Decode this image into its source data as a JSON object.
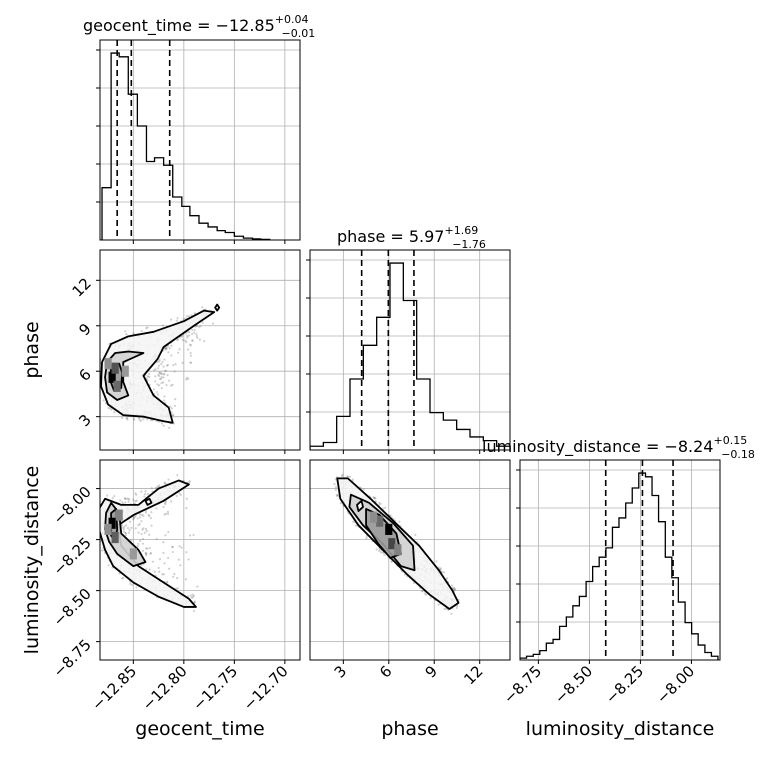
{
  "chart_data": {
    "type": "corner",
    "parameters": [
      {
        "name": "geocent_time",
        "range": [
          -12.883,
          -12.685
        ],
        "ticks": [
          -12.85,
          -12.8,
          -12.75,
          -12.7
        ],
        "tick_labels": [
          "−12.85",
          "−12.80",
          "−12.75",
          "−12.70"
        ]
      },
      {
        "name": "phase",
        "range": [
          0.8,
          14.0
        ],
        "ticks": [
          3,
          6,
          9,
          12
        ],
        "tick_labels": [
          "3",
          "6",
          "9",
          "12"
        ]
      },
      {
        "name": "luminosity_distance",
        "range": [
          -8.84,
          -7.86
        ],
        "ticks": [
          -8.75,
          -8.5,
          -8.25,
          -8.0
        ],
        "tick_labels": [
          "−8.75",
          "−8.50",
          "−8.25",
          "−8.00"
        ]
      }
    ],
    "titles": [
      {
        "label": "geocent_time = −12.85",
        "sup": "+0.04",
        "sub": "−0.01"
      },
      {
        "label": "phase = 5.97",
        "sup": "+1.69",
        "sub": "−1.76"
      },
      {
        "label": "luminosity_distance = −8.24",
        "sup": "+0.15",
        "sub": "−0.18"
      }
    ],
    "quantile_lines": [
      [
        -12.866,
        -12.852,
        -12.814
      ],
      [
        4.21,
        5.97,
        7.66
      ],
      [
        -8.42,
        -8.24,
        -8.09
      ]
    ],
    "histograms": [
      {
        "parameter": "geocent_time",
        "bin_edges": [
          -12.881,
          -12.872,
          -12.864,
          -12.855,
          -12.846,
          -12.837,
          -12.829,
          -12.82,
          -12.811,
          -12.802,
          -12.794,
          -12.785,
          -12.776,
          -12.767,
          -12.759,
          -12.75,
          -12.741,
          -12.732,
          -12.724,
          -12.715
        ],
        "counts": [
          0.28,
          1.0,
          0.98,
          0.78,
          0.61,
          0.42,
          0.44,
          0.4,
          0.23,
          0.18,
          0.13,
          0.09,
          0.07,
          0.05,
          0.04,
          0.02,
          0.01,
          0.006,
          0.003
        ],
        "ymax": 1.07
      },
      {
        "parameter": "phase",
        "bin_edges": [
          0.8,
          1.68,
          2.56,
          3.44,
          4.32,
          5.2,
          6.08,
          6.96,
          7.84,
          8.72,
          9.6,
          10.48,
          11.36,
          12.24,
          13.12,
          14.0
        ],
        "counts": [
          0.02,
          0.04,
          0.18,
          0.38,
          0.56,
          0.71,
          1.0,
          0.8,
          0.38,
          0.2,
          0.16,
          0.11,
          0.07,
          0.05,
          0.02
        ],
        "ymax": 1.07
      },
      {
        "parameter": "luminosity_distance",
        "bin_edges": [
          -8.84,
          -8.808,
          -8.775,
          -8.743,
          -8.711,
          -8.678,
          -8.646,
          -8.613,
          -8.581,
          -8.549,
          -8.516,
          -8.484,
          -8.452,
          -8.419,
          -8.387,
          -8.355,
          -8.322,
          -8.29,
          -8.258,
          -8.225,
          -8.193,
          -8.161,
          -8.128,
          -8.096,
          -8.064,
          -8.031,
          -7.999,
          -7.967,
          -7.934,
          -7.902,
          -7.87
        ],
        "counts": [
          0.01,
          0.02,
          0.03,
          0.05,
          0.09,
          0.11,
          0.18,
          0.23,
          0.29,
          0.34,
          0.42,
          0.5,
          0.55,
          0.6,
          0.71,
          0.76,
          0.84,
          0.92,
          1.0,
          0.98,
          0.88,
          0.74,
          0.55,
          0.44,
          0.31,
          0.2,
          0.14,
          0.08,
          0.04,
          0.02
        ],
        "ymax": 1.07
      }
    ],
    "contour_pairs": [
      {
        "x": "geocent_time",
        "y": "phase",
        "levels": [
          [
            [
              -12.881,
              6.6
            ],
            [
              -12.872,
              7.8
            ],
            [
              -12.855,
              8.3
            ],
            [
              -12.83,
              8.6
            ],
            [
              -12.8,
              9.3
            ],
            [
              -12.78,
              10.0
            ],
            [
              -12.77,
              9.9
            ],
            [
              -12.79,
              9.0
            ],
            [
              -12.82,
              7.6
            ],
            [
              -12.826,
              6.8
            ],
            [
              -12.84,
              5.7
            ],
            [
              -12.83,
              4.4
            ],
            [
              -12.815,
              3.6
            ],
            [
              -12.811,
              2.6
            ],
            [
              -12.82,
              2.7
            ],
            [
              -12.84,
              3.0
            ],
            [
              -12.86,
              3.1
            ],
            [
              -12.875,
              3.8
            ],
            [
              -12.882,
              5.0
            ]
          ],
          [
            [
              -12.876,
              6.6
            ],
            [
              -12.868,
              7.2
            ],
            [
              -12.855,
              7.3
            ],
            [
              -12.84,
              7.2
            ],
            [
              -12.86,
              6.6
            ],
            [
              -12.86,
              5.3
            ],
            [
              -12.855,
              4.4
            ],
            [
              -12.866,
              4.1
            ],
            [
              -12.876,
              4.6
            ],
            [
              -12.878,
              5.6
            ]
          ],
          [
            [
              -12.872,
              6.3
            ],
            [
              -12.864,
              6.5
            ],
            [
              -12.861,
              5.9
            ],
            [
              -12.862,
              4.9
            ],
            [
              -12.869,
              4.7
            ],
            [
              -12.873,
              5.4
            ]
          ],
          [
            [
              -12.769,
              10.2
            ],
            [
              -12.767,
              10.4
            ],
            [
              -12.765,
              10.2
            ],
            [
              -12.767,
              10.0
            ]
          ]
        ],
        "density_cells": [
          [
            -12.871,
            5.6,
            1.0
          ],
          [
            -12.868,
            6.2,
            0.65
          ],
          [
            -12.866,
            5.0,
            0.55
          ],
          [
            -12.875,
            6.5,
            0.4
          ],
          [
            -12.858,
            6.0,
            0.35
          ]
        ]
      },
      {
        "x": "geocent_time",
        "y": "luminosity_distance",
        "levels": [
          [
            [
              -12.884,
              -8.1
            ],
            [
              -12.878,
              -8.05
            ],
            [
              -12.862,
              -8.08
            ],
            [
              -12.845,
              -8.08
            ],
            [
              -12.825,
              -8.0
            ],
            [
              -12.805,
              -7.96
            ],
            [
              -12.795,
              -7.98
            ],
            [
              -12.82,
              -8.06
            ],
            [
              -12.85,
              -8.13
            ],
            [
              -12.865,
              -8.18
            ],
            [
              -12.862,
              -8.28
            ],
            [
              -12.845,
              -8.38
            ],
            [
              -12.82,
              -8.46
            ],
            [
              -12.795,
              -8.54
            ],
            [
              -12.788,
              -8.58
            ],
            [
              -12.8,
              -8.58
            ],
            [
              -12.825,
              -8.53
            ],
            [
              -12.85,
              -8.46
            ],
            [
              -12.87,
              -8.38
            ],
            [
              -12.878,
              -8.3
            ],
            [
              -12.884,
              -8.2
            ]
          ],
          [
            [
              -12.877,
              -8.12
            ],
            [
              -12.872,
              -8.07
            ],
            [
              -12.864,
              -8.12
            ],
            [
              -12.862,
              -8.22
            ],
            [
              -12.845,
              -8.3
            ],
            [
              -12.838,
              -8.36
            ],
            [
              -12.85,
              -8.38
            ],
            [
              -12.866,
              -8.32
            ],
            [
              -12.874,
              -8.26
            ],
            [
              -12.878,
              -8.2
            ]
          ],
          [
            [
              -12.872,
              -8.12
            ],
            [
              -12.867,
              -8.1
            ],
            [
              -12.866,
              -8.2
            ],
            [
              -12.868,
              -8.26
            ],
            [
              -12.872,
              -8.23
            ]
          ],
          [
            [
              -12.838,
              -8.06
            ],
            [
              -12.834,
              -8.05
            ],
            [
              -12.832,
              -8.07
            ],
            [
              -12.836,
              -8.08
            ]
          ]
        ],
        "density_cells": [
          [
            -12.871,
            -8.17,
            1.0
          ],
          [
            -12.868,
            -8.24,
            0.6
          ],
          [
            -12.864,
            -8.13,
            0.45
          ],
          [
            -12.85,
            -8.32,
            0.35
          ],
          [
            -12.875,
            -8.2,
            0.4
          ]
        ]
      },
      {
        "x": "phase",
        "y": "luminosity_distance",
        "levels": [
          [
            [
              2.6,
              -7.95
            ],
            [
              3.3,
              -7.95
            ],
            [
              4.8,
              -8.05
            ],
            [
              6.6,
              -8.18
            ],
            [
              8.0,
              -8.28
            ],
            [
              9.3,
              -8.4
            ],
            [
              10.2,
              -8.5
            ],
            [
              10.6,
              -8.56
            ],
            [
              10.0,
              -8.59
            ],
            [
              8.7,
              -8.52
            ],
            [
              7.2,
              -8.42
            ],
            [
              5.6,
              -8.3
            ],
            [
              4.0,
              -8.18
            ],
            [
              2.8,
              -8.05
            ]
          ],
          [
            [
              3.5,
              -8.03
            ],
            [
              4.7,
              -8.07
            ],
            [
              6.3,
              -8.17
            ],
            [
              7.6,
              -8.28
            ],
            [
              7.7,
              -8.4
            ],
            [
              6.8,
              -8.38
            ],
            [
              5.6,
              -8.27
            ],
            [
              4.3,
              -8.18
            ],
            [
              3.4,
              -8.09
            ]
          ],
          [
            [
              4.5,
              -8.1
            ],
            [
              5.4,
              -8.13
            ],
            [
              6.5,
              -8.22
            ],
            [
              6.8,
              -8.32
            ],
            [
              6.1,
              -8.34
            ],
            [
              5.3,
              -8.27
            ],
            [
              4.5,
              -8.18
            ]
          ],
          [
            [
              3.9,
              -8.08
            ],
            [
              4.2,
              -8.06
            ],
            [
              4.3,
              -8.09
            ],
            [
              4.0,
              -8.11
            ]
          ]
        ],
        "density_cells": [
          [
            6.0,
            -8.2,
            1.0
          ],
          [
            6.2,
            -8.27,
            0.7
          ],
          [
            5.4,
            -8.16,
            0.55
          ],
          [
            6.6,
            -8.3,
            0.45
          ],
          [
            5.0,
            -8.14,
            0.4
          ]
        ]
      }
    ]
  }
}
